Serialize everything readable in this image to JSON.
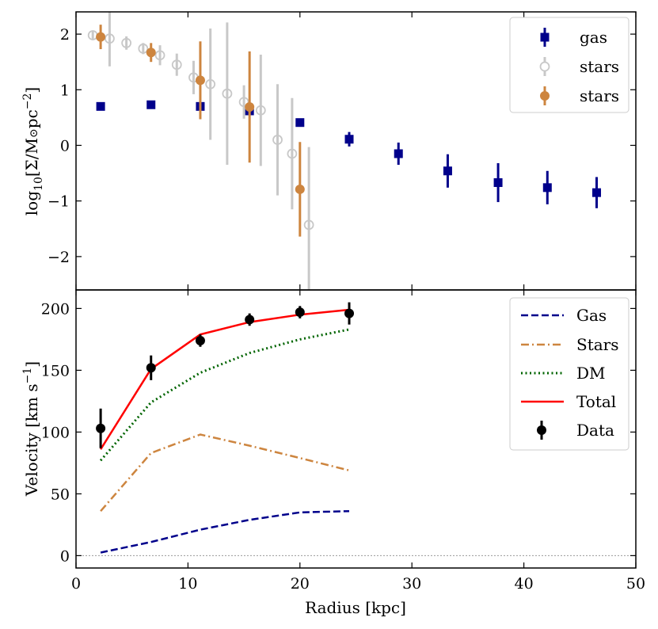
{
  "chart_data": [
    {
      "type": "scatter",
      "panel": "top",
      "ylabel": "log10[Σ/M⊙pc−2]",
      "ylabel_parts": {
        "base": "log",
        "sub": "10",
        "body": "[Σ/M",
        "sun": "⊙",
        "unit": "pc",
        "sup": "−2",
        "close": "]"
      },
      "xlim": [
        0,
        50
      ],
      "ylim": [
        -2.6,
        2.4
      ],
      "yticks": [
        2,
        1,
        0,
        -1,
        -2
      ],
      "ytick_labels": [
        "2",
        "1",
        "0",
        "−1",
        "−2"
      ],
      "legend": {
        "placement": "top-right"
      },
      "series": [
        {
          "name": "gas",
          "marker": "square",
          "color": "#00008b",
          "points": [
            {
              "x": 2.2,
              "y": 0.7,
              "err": 0.05
            },
            {
              "x": 6.7,
              "y": 0.73,
              "err": 0.05
            },
            {
              "x": 11.1,
              "y": 0.7,
              "err": 0.05
            },
            {
              "x": 15.5,
              "y": 0.62,
              "err": 0.06
            },
            {
              "x": 20.0,
              "y": 0.41,
              "err": 0.06
            },
            {
              "x": 24.4,
              "y": 0.11,
              "err": 0.13
            },
            {
              "x": 28.8,
              "y": -0.15,
              "err": 0.2
            },
            {
              "x": 33.2,
              "y": -0.46,
              "err": 0.3
            },
            {
              "x": 37.7,
              "y": -0.67,
              "err": 0.35
            },
            {
              "x": 42.1,
              "y": -0.76,
              "err": 0.3
            },
            {
              "x": 46.5,
              "y": -0.85,
              "err": 0.28
            }
          ]
        },
        {
          "name": "stars",
          "marker": "open-circle",
          "color": "#c8c8c8",
          "points": [
            {
              "x": 1.5,
              "y": 1.98,
              "err": 0.08
            },
            {
              "x": 3.0,
              "y": 1.92,
              "err": 0.5
            },
            {
              "x": 4.5,
              "y": 1.84,
              "err": 0.12
            },
            {
              "x": 6.0,
              "y": 1.74,
              "err": 0.1
            },
            {
              "x": 7.5,
              "y": 1.62,
              "err": 0.18
            },
            {
              "x": 9.0,
              "y": 1.45,
              "err": 0.2
            },
            {
              "x": 10.5,
              "y": 1.22,
              "err": 0.3
            },
            {
              "x": 12.0,
              "y": 1.1,
              "err": 1.0
            },
            {
              "x": 13.5,
              "y": 0.93,
              "err": 1.28
            },
            {
              "x": 15.0,
              "y": 0.78,
              "err": 0.3
            },
            {
              "x": 16.5,
              "y": 0.63,
              "err": 1.0
            },
            {
              "x": 18.0,
              "y": 0.1,
              "err": 1.0
            },
            {
              "x": 19.3,
              "y": -0.15,
              "err": 1.0
            },
            {
              "x": 20.8,
              "y": -1.43,
              "err": 1.4
            }
          ]
        },
        {
          "name": "stars",
          "marker": "filled-circle",
          "color": "#cd853f",
          "points": [
            {
              "x": 2.2,
              "y": 1.95,
              "err": 0.22
            },
            {
              "x": 6.7,
              "y": 1.67,
              "err": 0.17
            },
            {
              "x": 11.1,
              "y": 1.17,
              "err": 0.7
            },
            {
              "x": 15.5,
              "y": 0.69,
              "err": 1.0
            },
            {
              "x": 20.0,
              "y": -0.79,
              "err": 0.85
            }
          ]
        }
      ]
    },
    {
      "type": "line",
      "panel": "bottom",
      "xlabel": "Radius [kpc]",
      "ylabel": "Velocity [km s−1]",
      "ylabel_parts": {
        "body": "Velocity [km s",
        "sup": "−1",
        "close": "]"
      },
      "xlim": [
        0,
        50
      ],
      "ylim": [
        -10,
        215
      ],
      "xticks": [
        0,
        10,
        20,
        30,
        40,
        50
      ],
      "xtick_labels": [
        "0",
        "10",
        "20",
        "30",
        "40",
        "50"
      ],
      "yticks": [
        0,
        50,
        100,
        150,
        200
      ],
      "ytick_labels": [
        "0",
        "50",
        "100",
        "150",
        "200"
      ],
      "zero_line": true,
      "legend": {
        "placement": "top-right"
      },
      "x": [
        2.2,
        6.7,
        11.1,
        15.5,
        20.0,
        24.4
      ],
      "series": [
        {
          "name": "Gas",
          "style": "dashed",
          "color": "#00008b",
          "values": [
            2.5,
            11,
            21,
            29,
            35,
            36
          ]
        },
        {
          "name": "Stars",
          "style": "dashdot",
          "color": "#cd853f",
          "values": [
            36,
            83,
            98,
            89,
            79,
            69
          ]
        },
        {
          "name": "DM",
          "style": "dotted",
          "color": "#006400",
          "values": [
            77,
            124,
            148,
            164,
            175,
            183
          ]
        },
        {
          "name": "Total",
          "style": "solid",
          "color": "#ff0000",
          "values": [
            86,
            151,
            179,
            189,
            195,
            199
          ]
        }
      ],
      "data_points": {
        "name": "Data",
        "color": "#000000",
        "points": [
          {
            "x": 2.2,
            "y": 103,
            "err": 16
          },
          {
            "x": 6.7,
            "y": 152,
            "err": 10
          },
          {
            "x": 11.1,
            "y": 174,
            "err": 5
          },
          {
            "x": 15.5,
            "y": 191,
            "err": 5
          },
          {
            "x": 20.0,
            "y": 197,
            "err": 5
          },
          {
            "x": 24.4,
            "y": 196,
            "err": 9
          }
        ]
      }
    }
  ]
}
